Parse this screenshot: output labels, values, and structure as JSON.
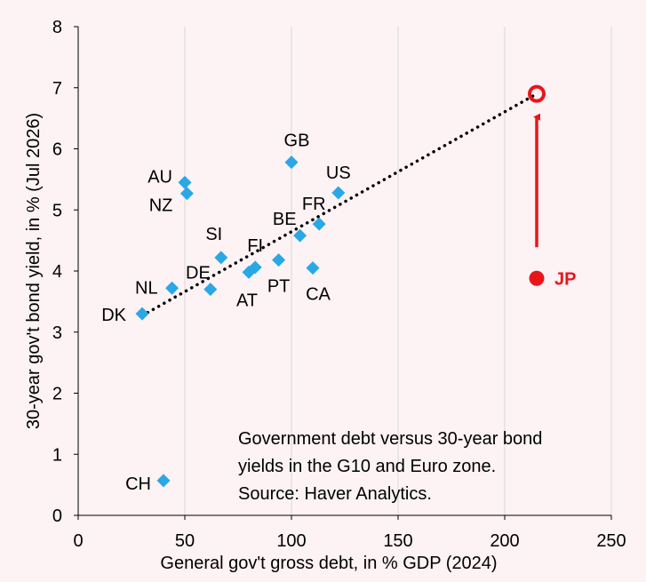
{
  "chart_data": {
    "type": "scatter",
    "xlabel": "General gov't gross debt, in % GDP (2024)",
    "ylabel": "30-year gov't bond yield, in % (Jul 2026)",
    "xlim": [
      0,
      250
    ],
    "ylim": [
      0,
      8
    ],
    "x_ticks": [
      "0",
      "50",
      "100",
      "150",
      "200",
      "250"
    ],
    "y_ticks": [
      "0",
      "1",
      "2",
      "3",
      "4",
      "5",
      "6",
      "7",
      "8"
    ],
    "grid": "vertical",
    "points": [
      {
        "label": "DK",
        "x": 30,
        "y": 3.3
      },
      {
        "label": "CH",
        "x": 40,
        "y": 0.57
      },
      {
        "label": "NL",
        "x": 44,
        "y": 3.72
      },
      {
        "label": "AU",
        "x": 50,
        "y": 5.45
      },
      {
        "label": "NZ",
        "x": 51,
        "y": 5.27
      },
      {
        "label": "DE",
        "x": 62,
        "y": 3.7
      },
      {
        "label": "SI",
        "x": 67,
        "y": 4.22
      },
      {
        "label": "AT",
        "x": 80,
        "y": 3.98
      },
      {
        "label": "FI",
        "x": 83,
        "y": 4.06
      },
      {
        "label": "PT",
        "x": 94,
        "y": 4.18
      },
      {
        "label": "GB",
        "x": 100,
        "y": 5.78
      },
      {
        "label": "BE",
        "x": 104,
        "y": 4.58
      },
      {
        "label": "CA",
        "x": 110,
        "y": 4.05
      },
      {
        "label": "FR",
        "x": 113,
        "y": 4.77
      },
      {
        "label": "US",
        "x": 122,
        "y": 5.28
      }
    ],
    "highlight": {
      "label": "JP",
      "x": 215,
      "y": 3.88,
      "projected_y": 6.9,
      "color": "#e8161b"
    },
    "trendline": {
      "x": [
        30,
        215
      ],
      "y": [
        3.27,
        6.9
      ],
      "style": "dotted"
    },
    "marker_color": "#29a8e6",
    "annotation": [
      "Government debt versus 30-year bond",
      "yields in the G10 and Euro zone.",
      "Source: Haver Analytics."
    ]
  }
}
